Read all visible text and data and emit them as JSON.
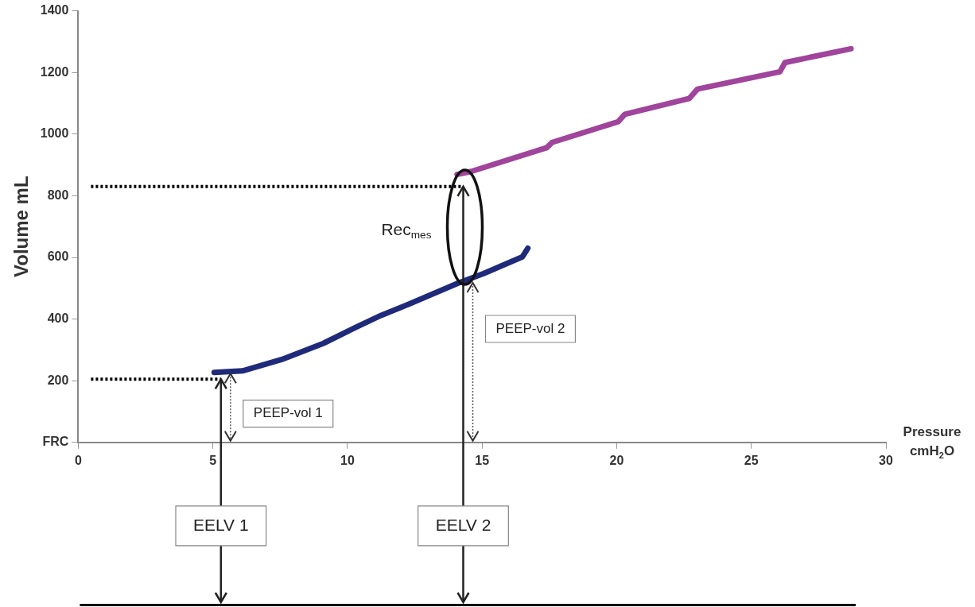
{
  "chart_data": {
    "type": "line",
    "xlabel": "Pressure cmH$_{2}$O",
    "ylabel": "Volume mL",
    "xlim": [
      0,
      30
    ],
    "xticks": [
      0,
      5,
      10,
      15,
      20,
      25,
      30
    ],
    "ylim": [
      0,
      1400
    ],
    "yticks": [
      {
        "value": 0,
        "label": "FRC"
      },
      200,
      400,
      600,
      800,
      1000,
      1200,
      1400
    ],
    "series": [
      {
        "color": "#1f2a7a",
        "x": [
          5.05,
          6.1,
          7.56,
          9.1,
          10.3,
          11.25,
          12.3,
          14.1,
          15.06,
          16.5,
          16.7
        ],
        "values": [
          227,
          232,
          269,
          321,
          373,
          412,
          449,
          516,
          548,
          602,
          630
        ]
      },
      {
        "color": "#a0449c",
        "x": [
          14.07,
          14.6,
          17.4,
          17.6,
          20.05,
          20.3,
          22.7,
          23.0,
          26.06,
          26.25,
          28.7
        ],
        "values": [
          869,
          879,
          956,
          973,
          1040,
          1064,
          1116,
          1146,
          1202,
          1232,
          1277
        ]
      }
    ],
    "ref_lines": [
      {
        "axis": "y",
        "value": 205,
        "color": "#000000",
        "line_style": "dotted"
      },
      {
        "axis": "y",
        "value": 830,
        "color": "#000000",
        "line_style": "dotted"
      },
      {
        "axis": "x",
        "value": 5.3,
        "color": "#222222",
        "line_style": "solid"
      },
      {
        "axis": "x",
        "value": 14.3,
        "color": "#222222",
        "line_style": "solid"
      }
    ],
    "annotations": [
      "Rec$_{mes}$",
      "PEEP-vol 1",
      "PEEP-vol 2",
      {
        "text": "EELV 1",
        "x": 5.3
      },
      {
        "text": "EELV 2",
        "x": 14.3
      }
    ],
    "grid": false,
    "legend": false,
    "marker": "none",
    "line_style": "solid"
  }
}
